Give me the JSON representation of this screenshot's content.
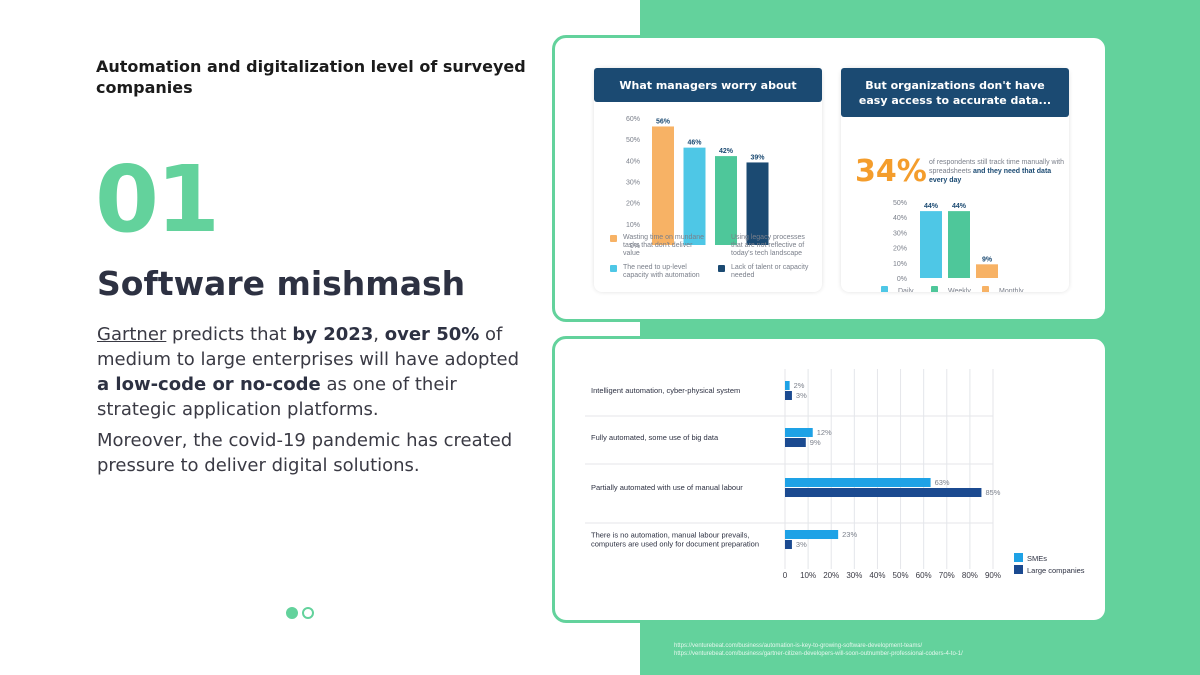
{
  "slide": {
    "title": "Automation and digitalization level of surveyed companies",
    "number": "01",
    "heading": "Software mishmash",
    "paragraph1": {
      "link": "Gartner",
      "t1": " predicts that ",
      "b1": "by 2023",
      "t2": ", ",
      "b2": "over 50%",
      "t3": " of medium to large enterprises will have adopted ",
      "b3": "a low-code or no-code",
      "t4": " as one of their strategic application platforms."
    },
    "paragraph2": "Moreover, the covid-19 pandemic has created pressure to deliver digital solutions.",
    "dots": [
      true,
      false
    ],
    "sources": [
      "https://venturebeat.com/business/automation-is-key-to-growing-software-development-teams/",
      "https://venturebeat.com/business/gartner-citizen-developers-will-soon-outnumber-professional-coders-4-to-1/"
    ]
  },
  "colors": {
    "accent_green": "#63d29c",
    "navy": "#1b4a72",
    "orange": "#f49d2c",
    "orange_bar": "#f7b265",
    "cyan": "#4ec7e6",
    "green_bar": "#4ec79a",
    "sme_blue": "#1ea2e6",
    "large_navy": "#1b4a90"
  },
  "chart_data": [
    {
      "type": "bar",
      "title": "What managers worry about",
      "categories": [
        "Wasting time on mundane tasks that don't deliver value",
        "The need to up-level capacity with automation",
        "Using legacy processes that are not reflective of today's tech landscape",
        "Lack of talent or capacity needed"
      ],
      "values": [
        56,
        46,
        42,
        39
      ],
      "value_labels": [
        "56%",
        "46%",
        "42%",
        "39%"
      ],
      "colors": [
        "#f7b265",
        "#4ec7e6",
        "#4ec79a",
        "#1b4a72"
      ],
      "ylim": [
        0,
        60
      ],
      "yticks": [
        "0%",
        "10%",
        "20%",
        "30%",
        "40%",
        "50%",
        "60%"
      ]
    },
    {
      "type": "bar",
      "title": "But organizations don't have easy access to accurate data...",
      "highlight": {
        "value": "34%",
        "text_pre": "of respondents still track time manually with spreadsheets ",
        "text_bold": "and they need that data every day"
      },
      "categories": [
        "Daily",
        "Weekly",
        "Monthly"
      ],
      "values": [
        44,
        44,
        9
      ],
      "value_labels": [
        "44%",
        "44%",
        "9%"
      ],
      "colors": [
        "#4ec7e6",
        "#4ec79a",
        "#f7b265"
      ],
      "ylim": [
        0,
        50
      ],
      "yticks": [
        "0%",
        "10%",
        "20%",
        "30%",
        "40%",
        "50%"
      ]
    },
    {
      "type": "bar",
      "orientation": "horizontal",
      "categories": [
        "Intelligent automation, cyber-physical system",
        "Fully automated, some use of big data",
        "Partially automated with use of manual labour",
        "There is no automation, manual labour prevails,|computers are used only for document preparation"
      ],
      "series": [
        {
          "name": "SMEs",
          "values": [
            2,
            12,
            63,
            23
          ],
          "labels": [
            "2%",
            "12%",
            "63%",
            "23%"
          ]
        },
        {
          "name": "Large companies",
          "values": [
            3,
            9,
            85,
            3
          ],
          "labels": [
            "3%",
            "9%",
            "85%",
            "3%"
          ]
        }
      ],
      "xlim": [
        0,
        90
      ],
      "xticks": [
        "0",
        "10%",
        "20%",
        "30%",
        "40%",
        "50%",
        "60%",
        "70%",
        "80%",
        "90%"
      ],
      "legend": "bottom-right"
    }
  ]
}
